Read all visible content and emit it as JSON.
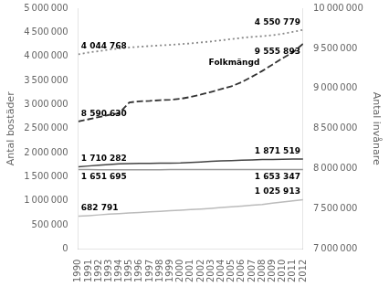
{
  "chart_data": {
    "type": "line",
    "x": [
      1990,
      1991,
      1992,
      1993,
      1994,
      1995,
      1996,
      1997,
      1998,
      1999,
      2000,
      2001,
      2002,
      2003,
      2004,
      2005,
      2006,
      2007,
      2008,
      2009,
      2010,
      2011,
      2012
    ],
    "xlim": [
      1990,
      2012
    ],
    "xticks": [
      1990,
      1991,
      1992,
      1993,
      1994,
      1995,
      1996,
      1997,
      1998,
      1999,
      2000,
      2001,
      2002,
      2003,
      2004,
      2005,
      2006,
      2007,
      2008,
      2009,
      2010,
      2011,
      2012
    ],
    "y_label": "Antal bostäder",
    "y2_label": "Antal invånare",
    "ylim": [
      0,
      5000000
    ],
    "yticks": [
      0,
      {
        "value": 500000,
        "label": "500 000"
      },
      {
        "value": 1000000,
        "label": "1 000 000"
      },
      {
        "value": 1500000,
        "label": "1 500 000"
      },
      {
        "value": 2000000,
        "label": "2 000 000"
      },
      {
        "value": 2500000,
        "label": "2 500 000"
      },
      {
        "value": 3000000,
        "label": "3 000 000"
      },
      {
        "value": 3500000,
        "label": "3 500 000"
      },
      {
        "value": 4000000,
        "label": "4 000 000"
      },
      {
        "value": 4500000,
        "label": "4 500 000"
      },
      {
        "value": 5000000,
        "label": "5 000 000"
      }
    ],
    "y2lim": [
      7000000,
      10000000
    ],
    "y2ticks": [
      {
        "value": 7000000,
        "label": "7 000 000"
      },
      {
        "value": 7500000,
        "label": "7 500 000"
      },
      {
        "value": 8000000,
        "label": "8 000 000"
      },
      {
        "value": 8500000,
        "label": "8 500 000"
      },
      {
        "value": 9000000,
        "label": "9 000 000"
      },
      {
        "value": 9500000,
        "label": "9 500 000"
      },
      {
        "value": 10000000,
        "label": "10 000 000"
      }
    ],
    "grid": false,
    "series": [
      {
        "color": "#888888",
        "line_style": "dotted",
        "values": [
          4044768,
          4080000,
          4110000,
          4140000,
          4165000,
          4185000,
          4200000,
          4215000,
          4228000,
          4240000,
          4255000,
          4270000,
          4290000,
          4310000,
          4335000,
          4360000,
          4385000,
          4405000,
          4420000,
          4440000,
          4470000,
          4510000,
          4550779
        ]
      },
      {
        "color": "#444444",
        "line_style": "solid",
        "values": [
          1710282,
          1725000,
          1742000,
          1758000,
          1768000,
          1773000,
          1778000,
          1780000,
          1782000,
          1785000,
          1790000,
          1800000,
          1810000,
          1820000,
          1830000,
          1838000,
          1845000,
          1852000,
          1858000,
          1862000,
          1866000,
          1869000,
          1871519
        ]
      },
      {
        "color": "#999999",
        "line_style": "solid",
        "values": [
          1651695,
          1650000,
          1648000,
          1648000,
          1647000,
          1648000,
          1649000,
          1649000,
          1649000,
          1650000,
          1651000,
          1652000,
          1652000,
          1652000,
          1652500,
          1652800,
          1653000,
          1653100,
          1653200,
          1653250,
          1653300,
          1653320,
          1653347
        ]
      },
      {
        "color": "#bbbbbb",
        "line_style": "solid",
        "values": [
          682791,
          695000,
          710000,
          725000,
          738000,
          750000,
          762000,
          774000,
          785000,
          796000,
          808000,
          820000,
          833000,
          847000,
          862000,
          877000,
          893000,
          910000,
          928000,
          955000,
          980000,
          1002000,
          1025913
        ]
      },
      {
        "color": "#333333",
        "line_style": "dashed",
        "axis": "y2",
        "values": [
          8590630,
          8617000,
          8644000,
          8671000,
          8692000,
          8827000,
          8841000,
          8846000,
          8855000,
          8861000,
          8872000,
          8895000,
          8925000,
          8958000,
          8994000,
          9029000,
          9080000,
          9148000,
          9219000,
          9298000,
          9378000,
          9449000,
          9555893
        ]
      }
    ],
    "annotations": [
      {
        "text": "4 044 768",
        "x": 1990,
        "y": 4044768
      },
      {
        "text": "4 550 779",
        "x": 2012,
        "y": 4550779
      },
      {
        "text": "Folkmängd",
        "x": 2002.5,
        "y": 3700000
      },
      {
        "text": "8 590 630",
        "x": 1990,
        "y": 8590630,
        "axis": "y2"
      },
      {
        "text": "9 555 893",
        "x": 2012,
        "y": 9555893,
        "axis": "y2"
      },
      {
        "text": "1 710 282",
        "x": 1990,
        "y": 1710282
      },
      {
        "text": "1 871 519",
        "x": 2012,
        "y": 1871519
      },
      {
        "text": "1 651 695",
        "x": 1990,
        "y": 1651695
      },
      {
        "text": "1 653 347",
        "x": 2012,
        "y": 1653347
      },
      {
        "text": "682 791",
        "x": 1990,
        "y": 682791
      },
      {
        "text": "1 025 913",
        "x": 2012,
        "y": 1025913
      }
    ]
  }
}
